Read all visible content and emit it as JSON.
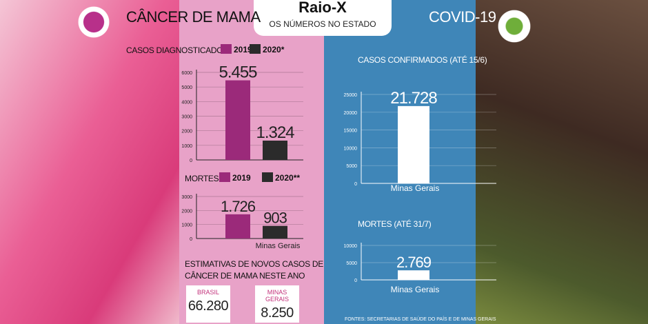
{
  "badge": {
    "title": "Raio-X",
    "subtitle": "OS NÚMEROS NO ESTADO"
  },
  "left": {
    "heading": "CÂNCER DE MAMA",
    "cases_title": "CASOS DIAGNOSTICADOS",
    "deaths_title": "MORTES",
    "legend_2019": "2019",
    "legend_2020a": "2020*",
    "legend_2020b": "2020**",
    "x_label": "Minas Gerais",
    "estimate_line1": "ESTIMATIVAS DE NOVOS CASOS DE",
    "estimate_line2": "CÂNCER DE MAMA NESTE ANO",
    "card1_label": "BRASIL",
    "card1_value": "66.280",
    "card2_label": "MINAS GERAIS",
    "card2_value": "8.250"
  },
  "right": {
    "heading": "COVID-19",
    "cases_title": "CASOS CONFIRMADOS (ATÉ 15/6)",
    "deaths_title": "MORTES (ATÉ 31/7)",
    "footer": "FONTES: SECRETARIAS DE SAÚDE DO PAÍS E DE MINAS GERAIS"
  },
  "colors": {
    "y2019": "#9b2a7a",
    "y2020": "#2b2b2b",
    "pink_bg": "#e8a2c8",
    "blue_bg": "#3f86b8"
  },
  "chart_data": [
    {
      "type": "bar",
      "title": "CASOS DIAGNOSTICADOS",
      "categories": [
        "2019",
        "2020*"
      ],
      "values": [
        5455,
        1324
      ],
      "value_labels": [
        "5.455",
        "1.324"
      ],
      "ylim": [
        0,
        6000
      ],
      "yticks": [
        0,
        1000,
        2000,
        3000,
        4000,
        5000,
        6000
      ]
    },
    {
      "type": "bar",
      "title": "MORTES",
      "categories": [
        "2019",
        "2020**"
      ],
      "values": [
        1726,
        903
      ],
      "value_labels": [
        "1.726",
        "903"
      ],
      "xlabel": "Minas Gerais",
      "ylim": [
        0,
        3000
      ],
      "yticks": [
        0,
        1000,
        2000,
        3000
      ]
    },
    {
      "type": "bar",
      "title": "CASOS CONFIRMADOS (ATÉ 15/6)",
      "categories": [
        "Minas Gerais"
      ],
      "values": [
        21728
      ],
      "value_labels": [
        "21.728"
      ],
      "ylim": [
        0,
        25000
      ],
      "yticks": [
        0,
        5000,
        10000,
        15000,
        20000,
        25000
      ]
    },
    {
      "type": "bar",
      "title": "MORTES (ATÉ 31/7)",
      "categories": [
        "Minas Gerais"
      ],
      "values": [
        2769
      ],
      "value_labels": [
        "2.769"
      ],
      "ylim": [
        0,
        10000
      ],
      "yticks": [
        0,
        5000,
        10000
      ]
    }
  ]
}
